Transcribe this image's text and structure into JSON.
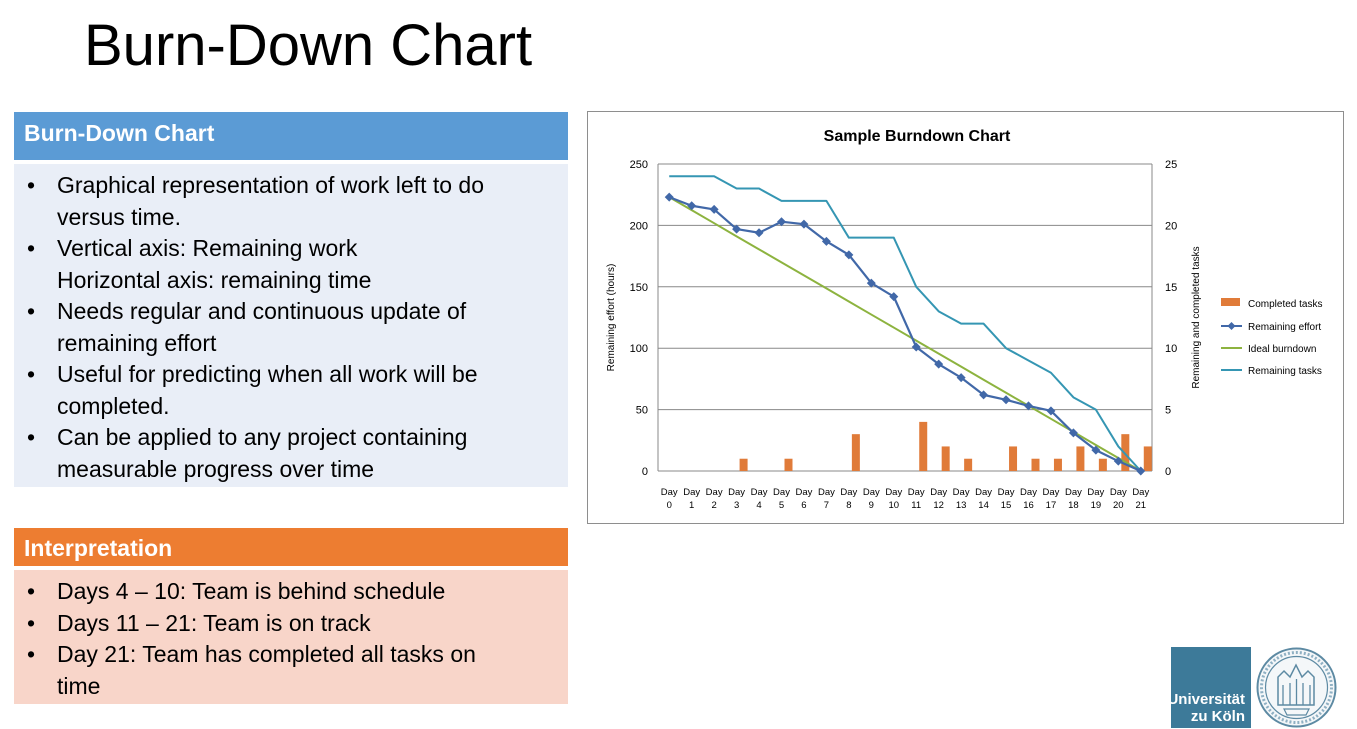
{
  "title": "Burn-Down Chart",
  "box1": {
    "heading": "Burn-Down Chart",
    "bullets": [
      [
        "Graphical representation of work left to do",
        "versus time."
      ],
      [
        "Vertical axis: Remaining work",
        "Horizontal axis: remaining time"
      ],
      [
        "Needs regular and continuous update of",
        "remaining effort"
      ],
      [
        "Useful for predicting when all work will be",
        "completed."
      ],
      [
        "Can be applied to any project containing",
        "measurable progress over time"
      ]
    ]
  },
  "box2": {
    "heading": "Interpretation",
    "bullets": [
      [
        "Days 4 – 10: Team is behind schedule"
      ],
      [
        "Days 11 – 21: Team is on track"
      ],
      [
        "Day 21: Team has completed all tasks on",
        "time"
      ]
    ]
  },
  "logo": {
    "line1": "Universität",
    "line2": "zu Köln"
  },
  "chart_data": {
    "type": "bar+line",
    "title": "Sample Burndown Chart",
    "ylabel": "Remaining effort (hours)",
    "y2label": "Remaining and completed tasks",
    "ylim": [
      0,
      250
    ],
    "y2lim": [
      0,
      25
    ],
    "yticks": [
      0,
      50,
      100,
      150,
      200,
      250
    ],
    "y2ticks": [
      0,
      5,
      10,
      15,
      20,
      25
    ],
    "grid": true,
    "legend_position": "right",
    "categories": [
      [
        "Day",
        "0"
      ],
      [
        "Day",
        "1"
      ],
      [
        "Day",
        "2"
      ],
      [
        "Day",
        "3"
      ],
      [
        "Day",
        "4"
      ],
      [
        "Day",
        "5"
      ],
      [
        "Day",
        "6"
      ],
      [
        "Day",
        "7"
      ],
      [
        "Day",
        "8"
      ],
      [
        "Day",
        "9"
      ],
      [
        "Day",
        "10"
      ],
      [
        "Day",
        "11"
      ],
      [
        "Day",
        "12"
      ],
      [
        "Day",
        "13"
      ],
      [
        "Day",
        "14"
      ],
      [
        "Day",
        "15"
      ],
      [
        "Day",
        "16"
      ],
      [
        "Day",
        "17"
      ],
      [
        "Day",
        "18"
      ],
      [
        "Day",
        "19"
      ],
      [
        "Day",
        "20"
      ],
      [
        "Day",
        "21"
      ]
    ],
    "series": [
      {
        "name": "Completed tasks",
        "type": "bar",
        "axis": "right",
        "color": "#e07b39",
        "values": [
          0,
          0,
          0,
          1,
          0,
          1,
          0,
          0,
          3,
          0,
          0,
          4,
          2,
          1,
          0,
          2,
          1,
          1,
          2,
          1,
          3,
          2
        ]
      },
      {
        "name": "Remaining effort",
        "type": "line",
        "axis": "left",
        "color": "#4168a8",
        "marker": "diamond",
        "values": [
          223,
          216,
          213,
          197,
          194,
          203,
          201,
          187,
          176,
          153,
          142,
          101,
          87,
          76,
          62,
          58,
          53,
          49,
          31,
          17,
          8,
          0
        ]
      },
      {
        "name": "Ideal burndown",
        "type": "line",
        "axis": "left",
        "color": "#8db33f",
        "values": [
          223,
          212.4,
          201.8,
          191.1,
          180.5,
          169.9,
          159.3,
          148.7,
          138.0,
          127.4,
          116.8,
          106.2,
          95.6,
          85.0,
          74.3,
          63.7,
          53.1,
          42.5,
          31.9,
          21.2,
          10.6,
          0
        ]
      },
      {
        "name": "Remaining tasks",
        "type": "line",
        "axis": "right",
        "color": "#3596b3",
        "values": [
          24,
          24,
          24,
          23,
          23,
          22,
          22,
          22,
          19,
          19,
          19,
          15,
          13,
          12,
          12,
          10,
          9,
          8,
          6,
          5,
          2,
          0
        ]
      }
    ]
  }
}
